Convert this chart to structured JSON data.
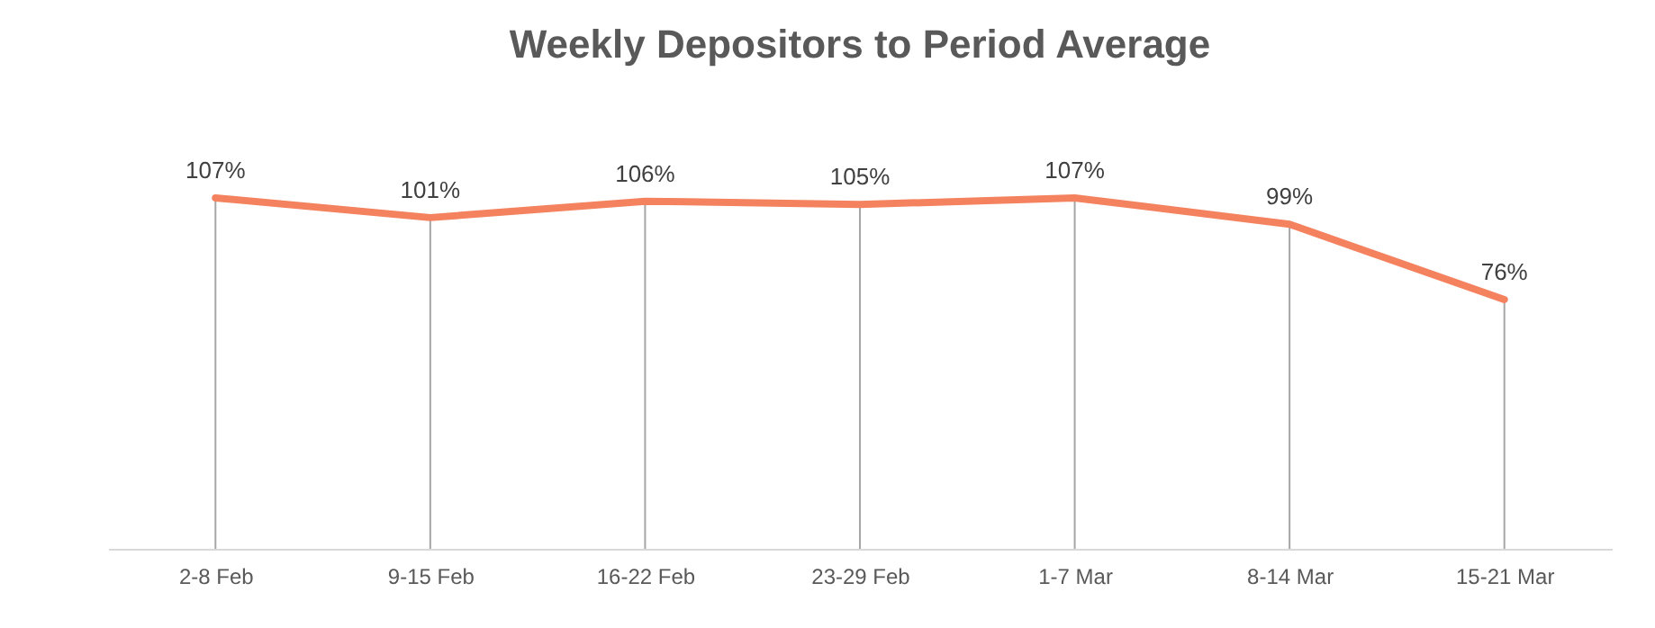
{
  "chart_data": {
    "type": "line",
    "title": "Weekly Depositors to Period Average",
    "categories": [
      "2-8 Feb",
      "9-15 Feb",
      "16-22 Feb",
      "23-29 Feb",
      "1-7 Mar",
      "8-14 Mar",
      "15-21 Mar"
    ],
    "series": [
      {
        "color": "#f4825f",
        "values": [
          107,
          101,
          106,
          105,
          107,
          99,
          76
        ],
        "value_labels": [
          "107%",
          "101%",
          "106%",
          "105%",
          "107%",
          "99%",
          "76%"
        ]
      }
    ],
    "grid": "x",
    "marker": "none",
    "line_style": "solid",
    "tick_labels": "x"
  }
}
